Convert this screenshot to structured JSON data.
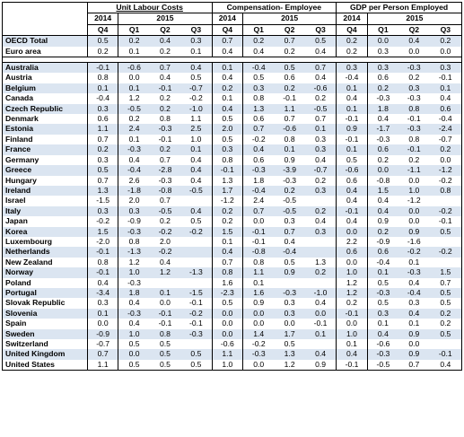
{
  "header": {
    "groups": [
      "Unit Labour Costs",
      "Compensation- Employee",
      "GDP per Person Employed"
    ],
    "year_2014": "2014",
    "year_2015": "2015",
    "quarters": [
      "Q4",
      "Q1",
      "Q2",
      "Q3"
    ]
  },
  "rows": [
    {
      "name": "OECD Total",
      "vals": [
        "0.5",
        "0.2",
        "0.4",
        "0.3",
        "0.7",
        "0.2",
        "0.7",
        "0.5",
        "0.2",
        "0.0",
        "0.4",
        "0.2"
      ]
    },
    {
      "name": "Euro area",
      "vals": [
        "0.2",
        "0.1",
        "0.2",
        "0.1",
        "0.4",
        "0.4",
        "0.2",
        "0.4",
        "0.2",
        "0.3",
        "0.0",
        "0.0"
      ]
    },
    {
      "name": "Australia",
      "vals": [
        "-0.1",
        "-0.6",
        "0.7",
        "0.4",
        "0.1",
        "-0.4",
        "0.5",
        "0.7",
        "0.3",
        "0.3",
        "-0.3",
        "0.3"
      ]
    },
    {
      "name": "Austria",
      "vals": [
        "0.8",
        "0.0",
        "0.4",
        "0.5",
        "0.4",
        "0.5",
        "0.6",
        "0.4",
        "-0.4",
        "0.6",
        "0.2",
        "-0.1"
      ]
    },
    {
      "name": "Belgium",
      "vals": [
        "0.1",
        "0.1",
        "-0.1",
        "-0.7",
        "0.2",
        "0.3",
        "0.2",
        "-0.6",
        "0.1",
        "0.2",
        "0.3",
        "0.1"
      ]
    },
    {
      "name": "Canada",
      "vals": [
        "-0.4",
        "1.2",
        "0.2",
        "-0.2",
        "0.1",
        "0.8",
        "-0.1",
        "0.2",
        "0.4",
        "-0.3",
        "-0.3",
        "0.4"
      ]
    },
    {
      "name": "Czech Republic",
      "vals": [
        "0.3",
        "-0.5",
        "0.2",
        "-1.0",
        "0.4",
        "1.3",
        "1.1",
        "-0.5",
        "0.1",
        "1.8",
        "0.8",
        "0.6"
      ]
    },
    {
      "name": "Denmark",
      "vals": [
        "0.6",
        "0.2",
        "0.8",
        "1.1",
        "0.5",
        "0.6",
        "0.7",
        "0.7",
        "-0.1",
        "0.4",
        "-0.1",
        "-0.4"
      ]
    },
    {
      "name": "Estonia",
      "vals": [
        "1.1",
        "2.4",
        "-0.3",
        "2.5",
        "2.0",
        "0.7",
        "-0.6",
        "0.1",
        "0.9",
        "-1.7",
        "-0.3",
        "-2.4"
      ]
    },
    {
      "name": "Finland",
      "vals": [
        "0.7",
        "0.1",
        "-0.1",
        "1.0",
        "0.5",
        "-0.2",
        "0.8",
        "0.3",
        "-0.1",
        "-0.3",
        "0.8",
        "-0.7"
      ]
    },
    {
      "name": "France",
      "vals": [
        "0.2",
        "-0.3",
        "0.2",
        "0.1",
        "0.3",
        "0.4",
        "0.1",
        "0.3",
        "0.1",
        "0.6",
        "-0.1",
        "0.2"
      ]
    },
    {
      "name": "Germany",
      "vals": [
        "0.3",
        "0.4",
        "0.7",
        "0.4",
        "0.8",
        "0.6",
        "0.9",
        "0.4",
        "0.5",
        "0.2",
        "0.2",
        "0.0"
      ]
    },
    {
      "name": "Greece",
      "vals": [
        "0.5",
        "-0.4",
        "-2.8",
        "0.4",
        "-0.1",
        "-0.3",
        "-3.9",
        "-0.7",
        "-0.6",
        "0.0",
        "-1.1",
        "-1.2"
      ]
    },
    {
      "name": "Hungary",
      "vals": [
        "0.7",
        "2.6",
        "-0.3",
        "0.4",
        "1.3",
        "1.8",
        "-0.3",
        "0.2",
        "0.6",
        "-0.8",
        "0.0",
        "-0.2"
      ]
    },
    {
      "name": "Ireland",
      "vals": [
        "1.3",
        "-1.8",
        "-0.8",
        "-0.5",
        "1.7",
        "-0.4",
        "0.2",
        "0.3",
        "0.4",
        "1.5",
        "1.0",
        "0.8"
      ]
    },
    {
      "name": "Israel",
      "vals": [
        "-1.5",
        "2.0",
        "0.7",
        "",
        "-1.2",
        "2.4",
        "-0.5",
        "",
        "0.4",
        "0.4",
        "-1.2",
        ""
      ]
    },
    {
      "name": "Italy",
      "vals": [
        "0.3",
        "0.3",
        "-0.5",
        "0.4",
        "0.2",
        "0.7",
        "-0.5",
        "0.2",
        "-0.1",
        "0.4",
        "0.0",
        "-0.2"
      ]
    },
    {
      "name": "Japan",
      "vals": [
        "-0.2",
        "-0.9",
        "0.2",
        "0.5",
        "0.2",
        "0.0",
        "0.3",
        "0.4",
        "0.4",
        "0.9",
        "0.0",
        "-0.1"
      ]
    },
    {
      "name": "Korea",
      "vals": [
        "1.5",
        "-0.3",
        "-0.2",
        "-0.2",
        "1.5",
        "-0.1",
        "0.7",
        "0.3",
        "0.0",
        "0.2",
        "0.9",
        "0.5"
      ]
    },
    {
      "name": "Luxembourg",
      "vals": [
        "-2.0",
        "0.8",
        "2.0",
        "",
        "0.1",
        "-0.1",
        "0.4",
        "",
        "2.2",
        "-0.9",
        "-1.6",
        ""
      ]
    },
    {
      "name": "Netherlands",
      "vals": [
        "-0.1",
        "-1.3",
        "-0.2",
        "",
        "0.4",
        "-0.8",
        "-0.4",
        "",
        "0.6",
        "0.6",
        "-0.2",
        "-0.2"
      ]
    },
    {
      "name": "New Zealand",
      "vals": [
        "0.8",
        "1.2",
        "0.4",
        "",
        "0.7",
        "0.8",
        "0.5",
        "1.3",
        "0.0",
        "-0.4",
        "0.1",
        ""
      ]
    },
    {
      "name": "Norway",
      "vals": [
        "-0.1",
        "1.0",
        "1.2",
        "-1.3",
        "0.8",
        "1.1",
        "0.9",
        "0.2",
        "1.0",
        "0.1",
        "-0.3",
        "1.5"
      ]
    },
    {
      "name": "Poland",
      "vals": [
        "0.4",
        "-0.3",
        "",
        "",
        "1.6",
        "0.1",
        "",
        "",
        "1.2",
        "0.5",
        "0.4",
        "0.7"
      ]
    },
    {
      "name": "Portugal",
      "vals": [
        "-3.4",
        "1.8",
        "0.1",
        "-1.5",
        "-2.3",
        "1.6",
        "-0.3",
        "-1.0",
        "1.2",
        "-0.3",
        "-0.4",
        "0.5"
      ]
    },
    {
      "name": "Slovak Republic",
      "vals": [
        "0.3",
        "0.4",
        "0.0",
        "-0.1",
        "0.5",
        "0.9",
        "0.3",
        "0.4",
        "0.2",
        "0.5",
        "0.3",
        "0.5"
      ]
    },
    {
      "name": "Slovenia",
      "vals": [
        "0.1",
        "-0.3",
        "-0.1",
        "-0.2",
        "0.0",
        "0.0",
        "0.3",
        "0.0",
        "-0.1",
        "0.3",
        "0.4",
        "0.2"
      ]
    },
    {
      "name": "Spain",
      "vals": [
        "0.0",
        "0.4",
        "-0.1",
        "-0.1",
        "0.0",
        "0.0",
        "0.0",
        "-0.1",
        "0.0",
        "0.1",
        "0.1",
        "0.2"
      ]
    },
    {
      "name": "Sweden",
      "vals": [
        "-0.9",
        "1.0",
        "0.8",
        "-0.3",
        "0.0",
        "1.4",
        "1.7",
        "0.1",
        "1.0",
        "0.4",
        "0.9",
        "0.5"
      ]
    },
    {
      "name": "Switzerland",
      "vals": [
        "-0.7",
        "0.5",
        "0.5",
        "",
        "-0.6",
        "-0.2",
        "0.5",
        "",
        "0.1",
        "-0.6",
        "0.0",
        ""
      ]
    },
    {
      "name": "United Kingdom",
      "vals": [
        "0.7",
        "0.0",
        "0.5",
        "0.5",
        "1.1",
        "-0.3",
        "1.3",
        "0.4",
        "0.4",
        "-0.3",
        "0.9",
        "-0.1"
      ]
    },
    {
      "name": "United States",
      "vals": [
        "1.1",
        "0.5",
        "0.5",
        "0.5",
        "1.0",
        "0.0",
        "1.2",
        "0.9",
        "-0.1",
        "-0.5",
        "0.7",
        "0.4"
      ]
    }
  ]
}
